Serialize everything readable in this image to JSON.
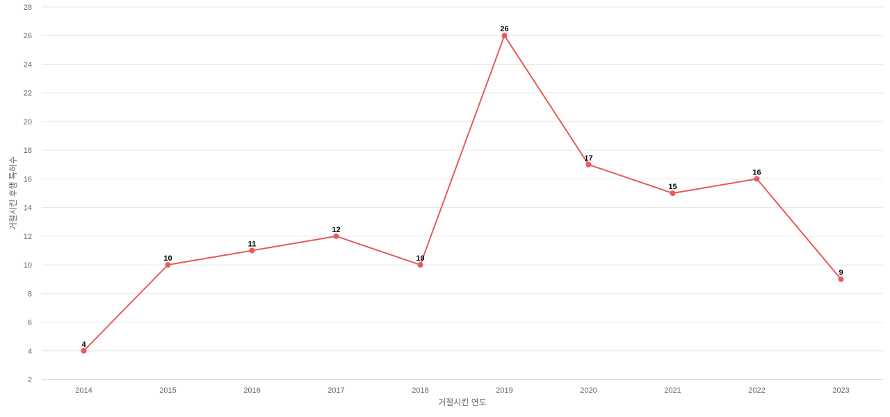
{
  "chart_data": {
    "type": "line",
    "xlabel": "거절시킨 연도",
    "ylabel": "거절시킨 후행 특허수",
    "categories": [
      "2014",
      "2015",
      "2016",
      "2017",
      "2018",
      "2019",
      "2020",
      "2021",
      "2022",
      "2023"
    ],
    "series": [
      {
        "values": [
          4,
          10,
          11,
          12,
          10,
          26,
          17,
          15,
          16,
          9
        ],
        "color": "#e85a5a"
      }
    ],
    "ylim": [
      2,
      28
    ],
    "yticks": [
      2,
      4,
      6,
      8,
      10,
      12,
      14,
      16,
      18,
      20,
      22,
      24,
      26,
      28
    ],
    "grid": true,
    "data_labels": true,
    "legend": "none"
  }
}
